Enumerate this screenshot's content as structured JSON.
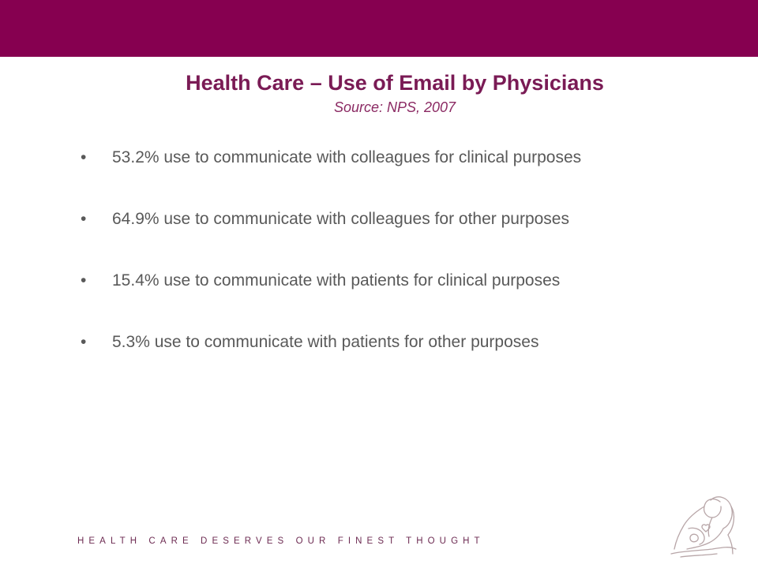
{
  "colors": {
    "brand": "#860050",
    "title": "#7a1b55",
    "subtitle": "#8b2a63",
    "body_text": "#595959",
    "tagline": "#6d2b52",
    "logo_stroke": "#b8a6a8"
  },
  "slide": {
    "title": "Health Care – Use of Email by Physicians",
    "subtitle": "Source: NPS, 2007",
    "bullet_symbol": "•",
    "bullets": [
      "53.2% use to communicate with colleagues for clinical purposes",
      "64.9% use to communicate with colleagues for other purposes",
      "15.4% use to communicate with patients for clinical purposes",
      "5.3% use to communicate with patients for other purposes"
    ]
  },
  "footer": {
    "tagline": "HEALTH CARE DESERVES OUR FINEST THOUGHT",
    "logo_icon": "mother-and-child-logo-icon"
  }
}
